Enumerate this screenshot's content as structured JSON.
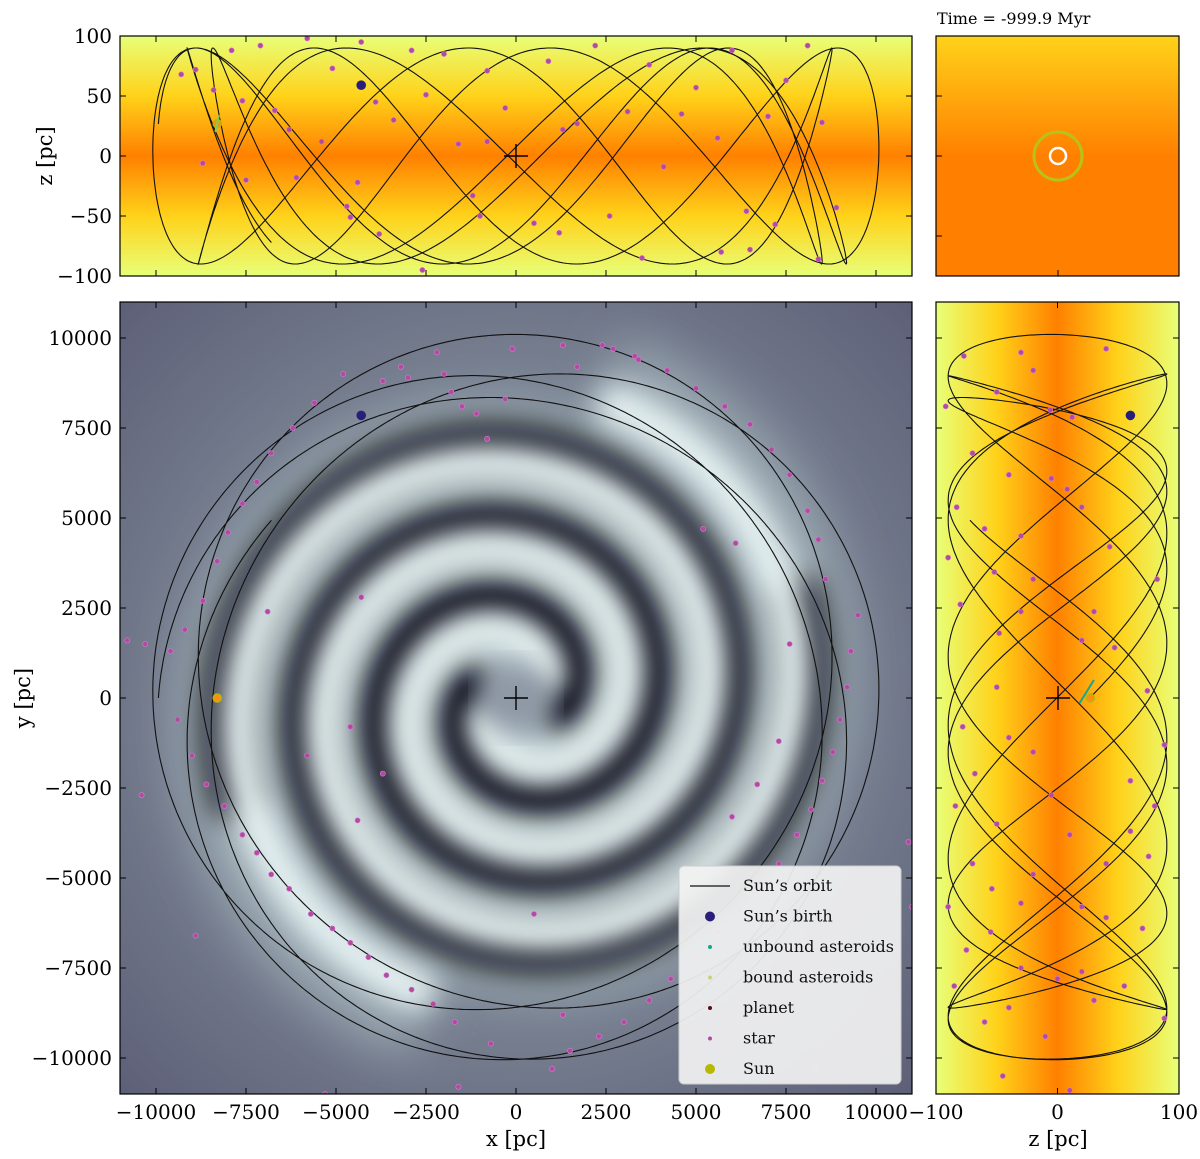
{
  "time_label": "Time = -999.9 Myr",
  "colors": {
    "orbit": "#111111",
    "birth": "#2a1f78",
    "unbound": "#1aa58a",
    "bound": "#c9cf7a",
    "planet": "#5a0f12",
    "star": "#b24aa4",
    "sun": "#b8b800",
    "disk_light": "#e8ff78",
    "disk_mid": "#ffd21a",
    "disk_dark": "#ff8000",
    "spiral_dark": "#05050a",
    "spiral_light": "#e8f4f4",
    "spiral_bg": "#6b6d84"
  },
  "chart_data": [
    {
      "type": "scatter",
      "panel": "top (x-z)",
      "xlabel": "",
      "ylabel": "z [pc]",
      "xlim": [
        -11000,
        11000
      ],
      "ylim": [
        -100,
        100
      ],
      "yticks": [
        100,
        50,
        0,
        -50,
        -100
      ],
      "ytick_labels": [
        "100",
        "50",
        "0",
        "−50",
        "−100"
      ],
      "series": [
        {
          "name": "Sun’s birth",
          "points": [
            [
              -4300,
              59
            ]
          ]
        },
        {
          "name": "Sun",
          "points": [
            [
              -8300,
              27
            ]
          ]
        },
        {
          "name": "star",
          "points": [
            [
              -9300,
              68
            ],
            [
              -8900,
              72
            ],
            [
              -8400,
              55
            ],
            [
              -7900,
              88
            ],
            [
              -7600,
              46
            ],
            [
              -7100,
              92
            ],
            [
              -6700,
              38
            ],
            [
              -6300,
              22
            ],
            [
              -5800,
              98
            ],
            [
              -5400,
              12
            ],
            [
              -5100,
              73
            ],
            [
              -4700,
              -42
            ],
            [
              -4300,
              95
            ],
            [
              -3900,
              45
            ],
            [
              -3400,
              30
            ],
            [
              -2900,
              88
            ],
            [
              -2500,
              51
            ],
            [
              -2000,
              85
            ],
            [
              -1600,
              10
            ],
            [
              -1200,
              -33
            ],
            [
              -800,
              71
            ],
            [
              -300,
              40
            ],
            [
              500,
              -56
            ],
            [
              900,
              79
            ],
            [
              1300,
              22
            ],
            [
              1700,
              27
            ],
            [
              2200,
              92
            ],
            [
              2600,
              -50
            ],
            [
              3100,
              37
            ],
            [
              3700,
              76
            ],
            [
              4100,
              -9
            ],
            [
              4600,
              35
            ],
            [
              5000,
              57
            ],
            [
              5600,
              15
            ],
            [
              6000,
              88
            ],
            [
              6500,
              -78
            ],
            [
              7000,
              33
            ],
            [
              7500,
              63
            ],
            [
              8100,
              92
            ],
            [
              8500,
              28
            ],
            [
              8900,
              -43
            ],
            [
              -8700,
              -6
            ],
            [
              -7500,
              -20
            ],
            [
              -6100,
              -18
            ],
            [
              -4600,
              -51
            ],
            [
              -4400,
              -22
            ],
            [
              -3800,
              -65
            ],
            [
              -2600,
              -95
            ],
            [
              -1000,
              -50
            ],
            [
              -800,
              12
            ],
            [
              1200,
              -64
            ],
            [
              3500,
              -85
            ],
            [
              5700,
              -80
            ],
            [
              6400,
              -46
            ],
            [
              7200,
              -57
            ],
            [
              8400,
              -86
            ]
          ]
        }
      ]
    },
    {
      "type": "scatter",
      "panel": "main (x-y)",
      "xlabel": "x [pc]",
      "ylabel": "y [pc]",
      "xlim": [
        -11000,
        11000
      ],
      "ylim": [
        -11000,
        11000
      ],
      "xticks": [
        -10000,
        -7500,
        -5000,
        -2500,
        0,
        2500,
        5000,
        7500,
        10000
      ],
      "xtick_labels": [
        "−10000",
        "−7500",
        "−5000",
        "−2500",
        "0",
        "2500",
        "5000",
        "7500",
        "10000"
      ],
      "yticks": [
        10000,
        7500,
        5000,
        2500,
        0,
        -2500,
        -5000,
        -7500,
        -10000
      ],
      "ytick_labels": [
        "10000",
        "7500",
        "5000",
        "2500",
        "0",
        "−2500",
        "−5000",
        "−7500",
        "−10000"
      ],
      "series": [
        {
          "name": "Sun’s birth",
          "points": [
            [
              -4300,
              7850
            ]
          ]
        },
        {
          "name": "Sun",
          "points": [
            [
              -8300,
              0
            ]
          ]
        },
        {
          "name": "star",
          "points": [
            [
              -2200,
              9600
            ],
            [
              -2000,
              9000
            ],
            [
              -1800,
              8500
            ],
            [
              -1500,
              8100
            ],
            [
              -1100,
              7900
            ],
            [
              -800,
              7200
            ],
            [
              -300,
              8300
            ],
            [
              -3200,
              9200
            ],
            [
              -3700,
              8800
            ],
            [
              -4800,
              9000
            ],
            [
              -5600,
              8200
            ],
            [
              -6200,
              7500
            ],
            [
              -6800,
              6800
            ],
            [
              -7200,
              6000
            ],
            [
              -7600,
              5400
            ],
            [
              -8000,
              4600
            ],
            [
              -8300,
              3800
            ],
            [
              -8700,
              2700
            ],
            [
              -9200,
              1900
            ],
            [
              -9600,
              1300
            ],
            [
              -10300,
              1500
            ],
            [
              -10800,
              1600
            ],
            [
              -9400,
              -600
            ],
            [
              -9000,
              -1600
            ],
            [
              -8600,
              -2400
            ],
            [
              -8100,
              -3000
            ],
            [
              -7600,
              -3800
            ],
            [
              -7200,
              -4300
            ],
            [
              -6800,
              -4900
            ],
            [
              -6300,
              -5300
            ],
            [
              -5700,
              -6000
            ],
            [
              -5100,
              -6400
            ],
            [
              -4600,
              -6800
            ],
            [
              -4100,
              -7200
            ],
            [
              -3600,
              -7700
            ],
            [
              -2900,
              -8100
            ],
            [
              -2300,
              -8500
            ],
            [
              -1700,
              -9000
            ],
            [
              -700,
              -9600
            ],
            [
              -10400,
              -2700
            ],
            [
              -8900,
              -6600
            ],
            [
              -5300,
              -11000
            ],
            [
              -3000,
              -11100
            ],
            [
              -1600,
              -10800
            ],
            [
              1000,
              -10300
            ],
            [
              1500,
              -9800
            ],
            [
              2300,
              -9400
            ],
            [
              3000,
              -9000
            ],
            [
              3700,
              -8400
            ],
            [
              4300,
              -7800
            ],
            [
              5000,
              -7200
            ],
            [
              5600,
              -6500
            ],
            [
              6200,
              -5900
            ],
            [
              6800,
              -5300
            ],
            [
              7300,
              -4600
            ],
            [
              7800,
              -3800
            ],
            [
              8200,
              -3100
            ],
            [
              8500,
              -2300
            ],
            [
              8800,
              -1500
            ],
            [
              9000,
              -600
            ],
            [
              9200,
              300
            ],
            [
              9300,
              1300
            ],
            [
              9500,
              2300
            ],
            [
              8600,
              3300
            ],
            [
              8400,
              4400
            ],
            [
              8100,
              5200
            ],
            [
              7600,
              6200
            ],
            [
              7100,
              6900
            ],
            [
              6500,
              7600
            ],
            [
              5800,
              8100
            ],
            [
              5000,
              8600
            ],
            [
              4200,
              9100
            ],
            [
              3300,
              9500
            ],
            [
              2400,
              9800
            ],
            [
              1300,
              9800
            ],
            [
              -100,
              9700
            ],
            [
              500,
              -6000
            ],
            [
              1300,
              -8800
            ],
            [
              2700,
              9700
            ],
            [
              5200,
              4700
            ],
            [
              6100,
              4300
            ],
            [
              7600,
              1500
            ],
            [
              7300,
              -1200
            ],
            [
              6700,
              -2400
            ],
            [
              6000,
              -3300
            ],
            [
              -4600,
              -800
            ],
            [
              -3700,
              -2100
            ],
            [
              -4400,
              -3400
            ],
            [
              -5800,
              -1600
            ],
            [
              -6900,
              2400
            ],
            [
              -4300,
              2800
            ],
            [
              -3000,
              8900
            ],
            [
              1700,
              9200
            ],
            [
              3400,
              9400
            ],
            [
              10900,
              -4000
            ],
            [
              11000,
              -5800
            ],
            [
              10300,
              -4900
            ],
            [
              8300,
              -10300
            ]
          ]
        }
      ]
    },
    {
      "type": "scatter",
      "panel": "small (x-z zoom)",
      "xlabel": "",
      "ylabel": "",
      "series": [
        {
          "name": "Sun",
          "points": [
            [
              0,
              0
            ]
          ]
        }
      ]
    },
    {
      "type": "scatter",
      "panel": "right (z-y)",
      "xlabel": "z [pc]",
      "ylabel": "",
      "xlim": [
        -100,
        100
      ],
      "ylim": [
        -11000,
        11000
      ],
      "xticks": [
        -100,
        0,
        100
      ],
      "xtick_labels": [
        "−100",
        "0",
        "100"
      ],
      "series": [
        {
          "name": "Sun’s birth",
          "points": [
            [
              60,
              7850
            ]
          ]
        },
        {
          "name": "Sun",
          "points": [
            [
              27,
              0
            ]
          ]
        },
        {
          "name": "star",
          "points": [
            [
              -92,
              8100
            ],
            [
              -77,
              9500
            ],
            [
              -30,
              9600
            ],
            [
              -20,
              9100
            ],
            [
              -50,
              8500
            ],
            [
              -6,
              8000
            ],
            [
              12,
              7800
            ],
            [
              40,
              9700
            ],
            [
              -70,
              6800
            ],
            [
              -40,
              6200
            ],
            [
              -5,
              6100
            ],
            [
              8,
              5800
            ],
            [
              -83,
              5300
            ],
            [
              20,
              5300
            ],
            [
              -60,
              4700
            ],
            [
              -30,
              4500
            ],
            [
              43,
              4200
            ],
            [
              -90,
              3900
            ],
            [
              -52,
              3500
            ],
            [
              -20,
              3300
            ],
            [
              82,
              3300
            ],
            [
              -80,
              2600
            ],
            [
              -30,
              2400
            ],
            [
              30,
              2400
            ],
            [
              -48,
              1800
            ],
            [
              20,
              1600
            ],
            [
              47,
              1400
            ],
            [
              -50,
              300
            ],
            [
              74,
              200
            ],
            [
              -78,
              -800
            ],
            [
              -40,
              -1100
            ],
            [
              -20,
              -1500
            ],
            [
              88,
              -1300
            ],
            [
              -68,
              -2100
            ],
            [
              -5,
              -2700
            ],
            [
              60,
              -2300
            ],
            [
              -84,
              -3000
            ],
            [
              -50,
              -3500
            ],
            [
              10,
              -3800
            ],
            [
              60,
              -3700
            ],
            [
              80,
              -3000
            ],
            [
              -70,
              -4600
            ],
            [
              -20,
              -4900
            ],
            [
              40,
              -4600
            ],
            [
              -54,
              -5300
            ],
            [
              -30,
              -5700
            ],
            [
              20,
              -5800
            ],
            [
              -90,
              -5800
            ],
            [
              70,
              -6400
            ],
            [
              -55,
              -6500
            ],
            [
              40,
              -6100
            ],
            [
              -75,
              -7000
            ],
            [
              -30,
              -7500
            ],
            [
              0,
              -7800
            ],
            [
              20,
              -7600
            ],
            [
              -85,
              -8000
            ],
            [
              -40,
              -8600
            ],
            [
              -60,
              -9000
            ],
            [
              30,
              -8400
            ],
            [
              55,
              -8000
            ],
            [
              -10,
              -9400
            ],
            [
              -45,
              -10500
            ],
            [
              10,
              -10900
            ],
            [
              88,
              -8900
            ],
            [
              75,
              -4400
            ]
          ]
        }
      ]
    }
  ],
  "main_legend": [
    {
      "key": "orbit",
      "label": "Sun’s orbit"
    },
    {
      "key": "birth",
      "label": "Sun’s birth"
    },
    {
      "key": "unbound",
      "label": "unbound asteroids"
    },
    {
      "key": "bound",
      "label": "bound asteroids"
    },
    {
      "key": "planet",
      "label": "planet"
    },
    {
      "key": "star",
      "label": "star"
    },
    {
      "key": "sun",
      "label": "Sun"
    }
  ]
}
